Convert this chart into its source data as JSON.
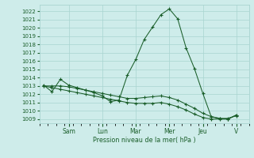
{
  "background_color": "#ceecea",
  "grid_color": "#a8d4d0",
  "line_color": "#1a5e2a",
  "ylabel": "Pression niveau de la mer( hPa )",
  "ylim": [
    1008.5,
    1022.8
  ],
  "yticks": [
    1009,
    1010,
    1011,
    1012,
    1013,
    1014,
    1015,
    1016,
    1017,
    1018,
    1019,
    1020,
    1021,
    1022
  ],
  "day_tick_positions": [
    3,
    7,
    11,
    15,
    19,
    23
  ],
  "day_labels": [
    "Sam",
    "Lun",
    "Mar",
    "Mer",
    "Jeu",
    "V"
  ],
  "xlim": [
    -0.5,
    24.5
  ],
  "series1_x": [
    0,
    1,
    2,
    3,
    4,
    5,
    6,
    7,
    8,
    9,
    10,
    11,
    12,
    13,
    14,
    15,
    16,
    17,
    18,
    19,
    20,
    21,
    22,
    23
  ],
  "series1_y": [
    1013.1,
    1012.3,
    1013.8,
    1013.1,
    1012.8,
    1012.5,
    1012.2,
    1011.8,
    1011.1,
    1011.3,
    1014.3,
    1016.2,
    1018.6,
    1020.1,
    1021.6,
    1022.3,
    1021.1,
    1017.6,
    1015.1,
    1012.1,
    1009.3,
    1009.05,
    1009.1,
    1009.4
  ],
  "series2_x": [
    0,
    1,
    2,
    3,
    4,
    5,
    6,
    7,
    8,
    9,
    10,
    11,
    12,
    13,
    14,
    15,
    16,
    17,
    18,
    19,
    20,
    21,
    22,
    23
  ],
  "series2_y": [
    1013.0,
    1013.0,
    1013.0,
    1012.9,
    1012.7,
    1012.5,
    1012.3,
    1012.1,
    1011.9,
    1011.7,
    1011.5,
    1011.5,
    1011.6,
    1011.7,
    1011.8,
    1011.6,
    1011.3,
    1010.8,
    1010.3,
    1009.7,
    1009.3,
    1009.1,
    1009.0,
    1009.5
  ],
  "series3_x": [
    0,
    1,
    2,
    3,
    4,
    5,
    6,
    7,
    8,
    9,
    10,
    11,
    12,
    13,
    14,
    15,
    16,
    17,
    18,
    19,
    20,
    21,
    22,
    23
  ],
  "series3_y": [
    1013.0,
    1012.8,
    1012.6,
    1012.4,
    1012.2,
    1012.0,
    1011.8,
    1011.6,
    1011.4,
    1011.2,
    1011.0,
    1010.9,
    1010.9,
    1010.9,
    1011.0,
    1010.8,
    1010.5,
    1010.1,
    1009.6,
    1009.2,
    1009.0,
    1009.0,
    1009.0,
    1009.5
  ]
}
